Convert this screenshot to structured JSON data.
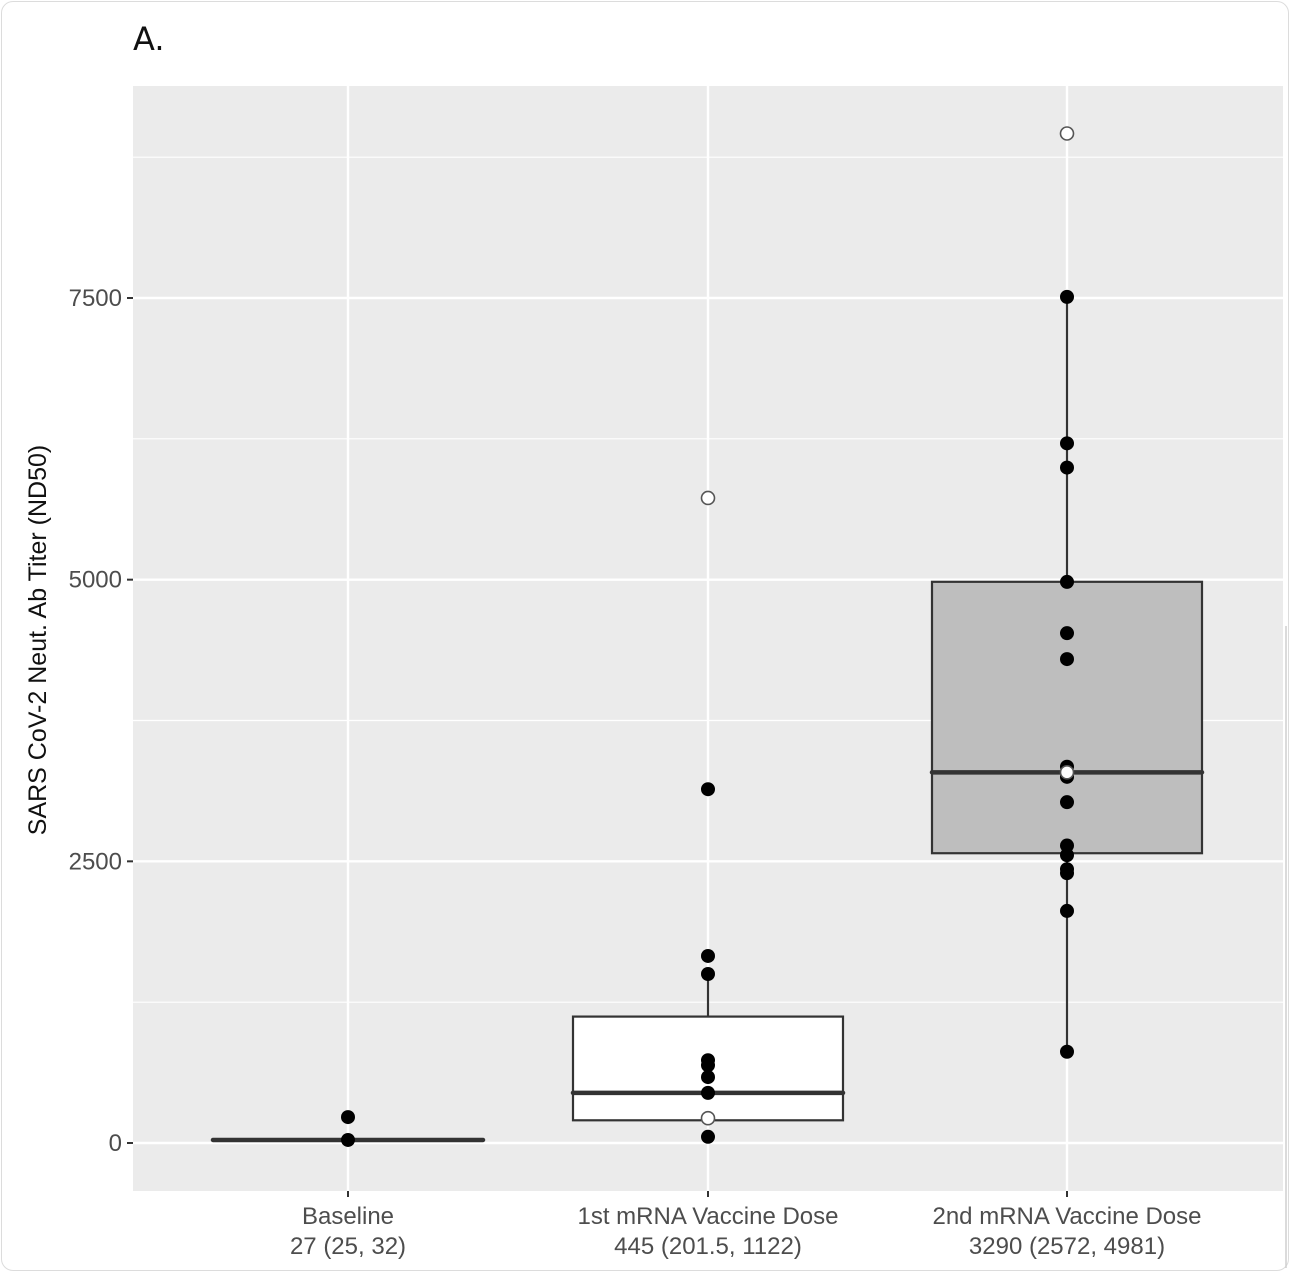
{
  "panel_label": "A.",
  "chart_data": {
    "type": "boxplot",
    "title": "",
    "xlabel": "",
    "ylabel": "SARS CoV-2 Neut. Ab Titer (ND50)",
    "ylim": [
      -400,
      9250
    ],
    "yticks": [
      0,
      2500,
      5000,
      7500
    ],
    "ytick_labels": [
      "0",
      "2500",
      "5000",
      "7500"
    ],
    "grid": true,
    "categories": [
      {
        "name": "Baseline",
        "summary": "27 (25, 32)"
      },
      {
        "name": "1st mRNA Vaccine Dose",
        "summary": "445 (201.5, 1122)"
      },
      {
        "name": "2nd mRNA Vaccine Dose",
        "summary": "3290 (2572, 4981)"
      }
    ],
    "boxes": [
      {
        "category": "Baseline",
        "median": 27,
        "q1": 25,
        "q3": 32,
        "whisker_low": 25,
        "whisker_high": 32,
        "fill": "#ffffff"
      },
      {
        "category": "1st mRNA Vaccine Dose",
        "median": 445,
        "q1": 201.5,
        "q3": 1122,
        "whisker_low": 201.5,
        "whisker_high": 1500,
        "fill": "#ffffff"
      },
      {
        "category": "2nd mRNA Vaccine Dose",
        "median": 3290,
        "q1": 2572,
        "q3": 4981,
        "whisker_low": 810,
        "whisker_high": 7510,
        "fill": "#bebebe"
      }
    ],
    "points": [
      {
        "category": "Baseline",
        "values": [
          230,
          27
        ],
        "open": []
      },
      {
        "category": "1st mRNA Vaccine Dose",
        "values": [
          3140,
          1660,
          1500,
          735,
          690,
          585,
          445,
          55
        ],
        "open": [
          5725,
          220
        ]
      },
      {
        "category": "2nd mRNA Vaccine Dose",
        "values": [
          7510,
          6210,
          5995,
          4980,
          4525,
          4295,
          3340,
          3250,
          3025,
          2640,
          2555,
          2430,
          2395,
          2060,
          810
        ],
        "open": [
          8960,
          3290
        ]
      }
    ],
    "colors": {
      "panel_bg": "#ebebeb",
      "grid": "#ffffff",
      "box_line": "#333333",
      "point": "#000000",
      "open_point_fill": "#ffffff"
    }
  }
}
